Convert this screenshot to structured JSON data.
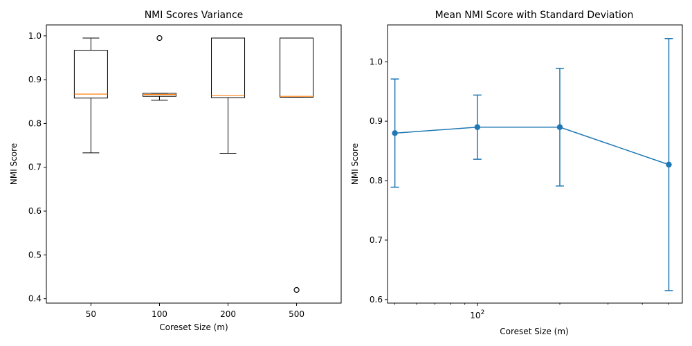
{
  "chart_data": [
    {
      "type": "box",
      "title": "NMI Scores Variance",
      "xlabel": "Coreset Size (m)",
      "ylabel": "NMI Score",
      "categories": [
        "50",
        "100",
        "200",
        "500"
      ],
      "ylim": [
        0.39,
        1.025
      ],
      "yticks": [
        0.4,
        0.5,
        0.6,
        0.7,
        0.8,
        0.9,
        1.0
      ],
      "ytick_labels": [
        "0.4",
        "0.5",
        "0.6",
        "0.7",
        "0.8",
        "0.9",
        "1.0"
      ],
      "boxes": [
        {
          "whisker_low": 0.733,
          "q1": 0.858,
          "median": 0.867,
          "q3": 0.967,
          "whisker_high": 0.995,
          "fliers": []
        },
        {
          "whisker_low": 0.853,
          "q1": 0.862,
          "median": 0.866,
          "q3": 0.869,
          "whisker_high": 0.869,
          "fliers": [
            0.995
          ]
        },
        {
          "whisker_low": 0.732,
          "q1": 0.859,
          "median": 0.864,
          "q3": 0.995,
          "whisker_high": 0.995,
          "fliers": []
        },
        {
          "whisker_low": 0.86,
          "q1": 0.86,
          "median": 0.862,
          "q3": 0.995,
          "whisker_high": 0.995,
          "fliers": [
            0.42
          ]
        }
      ],
      "colors": {
        "box": "#000000",
        "median": "#ff7f0e"
      }
    },
    {
      "type": "errorbar-line",
      "title": "Mean NMI Score with Standard Deviation",
      "xlabel": "Coreset Size (m)",
      "ylabel": "NMI Score",
      "xscale": "log",
      "x": [
        50,
        100,
        200,
        500
      ],
      "y": [
        0.88,
        0.89,
        0.89,
        0.827
      ],
      "yerr": [
        0.091,
        0.054,
        0.099,
        0.212
      ],
      "xlim": [
        47,
        560
      ],
      "ylim": [
        0.594,
        1.062
      ],
      "xticks": [
        100
      ],
      "xtick_labels": [
        "10"
      ],
      "xtick_label_exponent": "2",
      "yticks": [
        0.6,
        0.7,
        0.8,
        0.9,
        1.0
      ],
      "ytick_labels": [
        "0.6",
        "0.7",
        "0.8",
        "0.9",
        "1.0"
      ],
      "colors": {
        "line": "#1f77b4"
      }
    }
  ]
}
